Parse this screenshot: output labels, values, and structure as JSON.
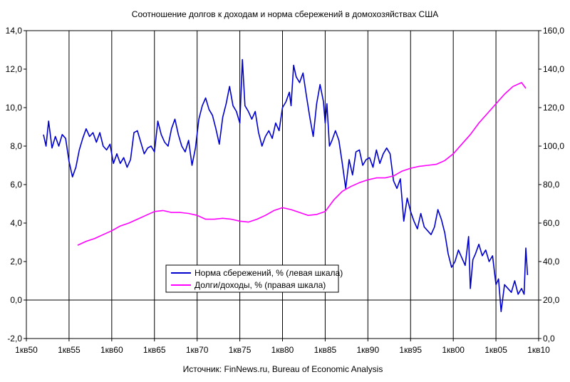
{
  "chart_data": {
    "type": "line",
    "title": "Соотношение долгов к доходам и норма сбережений в домохозяйствах США",
    "source": "Источник: FinNews.ru, Bureau of Economic Analysis",
    "x_axis": {
      "min": 1950,
      "max": 2010,
      "tick_values": [
        1950,
        1955,
        1960,
        1965,
        1970,
        1975,
        1980,
        1985,
        1990,
        1995,
        2000,
        2005,
        2010
      ],
      "tick_labels": [
        "1кв50",
        "1кв55",
        "1кв60",
        "1кв65",
        "1кв70",
        "1кв75",
        "1кв80",
        "1кв85",
        "1кв90",
        "1кв95",
        "1кв00",
        "1кв05",
        "1кв10"
      ]
    },
    "y_left": {
      "min": -2,
      "max": 14,
      "tick_values": [
        -2,
        0,
        2,
        4,
        6,
        8,
        10,
        12,
        14
      ],
      "tick_labels": [
        "-2,0",
        "0,0",
        "2,0",
        "4,0",
        "6,0",
        "8,0",
        "10,0",
        "12,0",
        "14,0"
      ]
    },
    "y_right": {
      "min": 0,
      "max": 160,
      "tick_values": [
        0,
        20,
        40,
        60,
        80,
        100,
        120,
        140,
        160
      ],
      "tick_labels": [
        "0,0",
        "20,0",
        "40,0",
        "60,0",
        "80,0",
        "100,0",
        "120,0",
        "140,0",
        "160,0"
      ]
    },
    "grid": "vertical",
    "legend_position": "center-left",
    "series": [
      {
        "name": "Норма сбережений, % (левая шкала)",
        "axis": "left",
        "color": "#0000cc",
        "points": [
          [
            1952.0,
            8.6
          ],
          [
            1952.3,
            8.0
          ],
          [
            1952.6,
            9.3
          ],
          [
            1953.0,
            7.9
          ],
          [
            1953.4,
            8.5
          ],
          [
            1953.8,
            8.0
          ],
          [
            1954.2,
            8.6
          ],
          [
            1954.6,
            8.4
          ],
          [
            1955.0,
            7.2
          ],
          [
            1955.4,
            6.4
          ],
          [
            1955.8,
            6.9
          ],
          [
            1956.2,
            7.8
          ],
          [
            1956.6,
            8.4
          ],
          [
            1957.0,
            8.9
          ],
          [
            1957.4,
            8.5
          ],
          [
            1957.8,
            8.7
          ],
          [
            1958.2,
            8.2
          ],
          [
            1958.6,
            8.7
          ],
          [
            1959.0,
            8.0
          ],
          [
            1959.4,
            7.8
          ],
          [
            1959.8,
            8.1
          ],
          [
            1960.2,
            7.1
          ],
          [
            1960.6,
            7.6
          ],
          [
            1961.0,
            7.1
          ],
          [
            1961.4,
            7.4
          ],
          [
            1961.8,
            6.9
          ],
          [
            1962.2,
            7.3
          ],
          [
            1962.6,
            8.7
          ],
          [
            1963.0,
            8.8
          ],
          [
            1963.4,
            8.2
          ],
          [
            1963.8,
            7.6
          ],
          [
            1964.2,
            7.9
          ],
          [
            1964.6,
            8.0
          ],
          [
            1965.0,
            7.7
          ],
          [
            1965.4,
            9.3
          ],
          [
            1965.8,
            8.6
          ],
          [
            1966.2,
            8.2
          ],
          [
            1966.6,
            8.0
          ],
          [
            1967.0,
            8.9
          ],
          [
            1967.4,
            9.4
          ],
          [
            1967.8,
            8.6
          ],
          [
            1968.2,
            8.0
          ],
          [
            1968.6,
            7.7
          ],
          [
            1969.0,
            8.3
          ],
          [
            1969.4,
            7.0
          ],
          [
            1969.8,
            7.9
          ],
          [
            1970.2,
            9.4
          ],
          [
            1970.6,
            10.1
          ],
          [
            1971.0,
            10.5
          ],
          [
            1971.4,
            9.9
          ],
          [
            1971.8,
            9.6
          ],
          [
            1972.2,
            8.9
          ],
          [
            1972.6,
            8.1
          ],
          [
            1973.0,
            9.5
          ],
          [
            1973.4,
            10.2
          ],
          [
            1973.8,
            11.1
          ],
          [
            1974.2,
            10.1
          ],
          [
            1974.6,
            9.8
          ],
          [
            1975.0,
            9.2
          ],
          [
            1975.3,
            12.5
          ],
          [
            1975.6,
            10.1
          ],
          [
            1976.0,
            9.8
          ],
          [
            1976.4,
            9.4
          ],
          [
            1976.8,
            9.8
          ],
          [
            1977.2,
            8.7
          ],
          [
            1977.6,
            8.0
          ],
          [
            1978.0,
            8.5
          ],
          [
            1978.4,
            8.8
          ],
          [
            1978.8,
            8.4
          ],
          [
            1979.2,
            9.2
          ],
          [
            1979.6,
            8.8
          ],
          [
            1980.0,
            10.0
          ],
          [
            1980.4,
            10.3
          ],
          [
            1980.8,
            10.8
          ],
          [
            1981.0,
            10.1
          ],
          [
            1981.3,
            12.2
          ],
          [
            1981.6,
            11.6
          ],
          [
            1982.0,
            11.3
          ],
          [
            1982.4,
            11.8
          ],
          [
            1982.8,
            10.6
          ],
          [
            1983.2,
            9.5
          ],
          [
            1983.6,
            8.5
          ],
          [
            1984.0,
            10.2
          ],
          [
            1984.4,
            11.2
          ],
          [
            1984.8,
            10.3
          ],
          [
            1985.0,
            9.2
          ],
          [
            1985.2,
            10.2
          ],
          [
            1985.5,
            8.0
          ],
          [
            1985.8,
            8.3
          ],
          [
            1986.2,
            8.8
          ],
          [
            1986.6,
            8.3
          ],
          [
            1987.0,
            7.1
          ],
          [
            1987.4,
            5.8
          ],
          [
            1987.8,
            7.3
          ],
          [
            1988.2,
            6.5
          ],
          [
            1988.6,
            7.7
          ],
          [
            1989.0,
            7.8
          ],
          [
            1989.4,
            7.0
          ],
          [
            1989.8,
            7.3
          ],
          [
            1990.2,
            7.4
          ],
          [
            1990.6,
            6.9
          ],
          [
            1991.0,
            7.8
          ],
          [
            1991.4,
            7.1
          ],
          [
            1991.8,
            7.6
          ],
          [
            1992.2,
            7.9
          ],
          [
            1992.6,
            7.6
          ],
          [
            1993.0,
            6.2
          ],
          [
            1993.4,
            5.8
          ],
          [
            1993.8,
            6.3
          ],
          [
            1994.2,
            4.1
          ],
          [
            1994.6,
            5.3
          ],
          [
            1995.0,
            4.6
          ],
          [
            1995.4,
            4.1
          ],
          [
            1995.8,
            3.7
          ],
          [
            1996.2,
            4.5
          ],
          [
            1996.6,
            3.8
          ],
          [
            1997.0,
            3.6
          ],
          [
            1997.4,
            3.4
          ],
          [
            1997.8,
            3.8
          ],
          [
            1998.2,
            4.7
          ],
          [
            1998.6,
            4.2
          ],
          [
            1999.0,
            3.5
          ],
          [
            1999.4,
            2.4
          ],
          [
            1999.8,
            1.7
          ],
          [
            2000.2,
            2.0
          ],
          [
            2000.6,
            2.6
          ],
          [
            2001.0,
            2.2
          ],
          [
            2001.4,
            1.8
          ],
          [
            2001.8,
            3.3
          ],
          [
            2002.0,
            0.6
          ],
          [
            2002.3,
            2.1
          ],
          [
            2002.6,
            2.4
          ],
          [
            2003.0,
            2.9
          ],
          [
            2003.4,
            2.3
          ],
          [
            2003.8,
            2.6
          ],
          [
            2004.2,
            2.0
          ],
          [
            2004.6,
            2.3
          ],
          [
            2005.0,
            0.8
          ],
          [
            2005.3,
            1.1
          ],
          [
            2005.6,
            -0.6
          ],
          [
            2006.0,
            0.8
          ],
          [
            2006.4,
            0.6
          ],
          [
            2006.8,
            0.4
          ],
          [
            2007.2,
            1.0
          ],
          [
            2007.6,
            0.3
          ],
          [
            2008.0,
            0.6
          ],
          [
            2008.3,
            0.3
          ],
          [
            2008.5,
            2.7
          ],
          [
            2008.7,
            1.3
          ]
        ]
      },
      {
        "name": "Долги/доходы, % (правая шкала)",
        "axis": "right",
        "color": "#ff00ff",
        "points": [
          [
            1956.0,
            48.5
          ],
          [
            1957.0,
            50.5
          ],
          [
            1958.0,
            52.0
          ],
          [
            1959.0,
            54.0
          ],
          [
            1960.0,
            56.0
          ],
          [
            1961.0,
            58.5
          ],
          [
            1962.0,
            60.0
          ],
          [
            1963.0,
            62.0
          ],
          [
            1964.0,
            64.0
          ],
          [
            1965.0,
            66.0
          ],
          [
            1966.0,
            66.5
          ],
          [
            1967.0,
            65.5
          ],
          [
            1968.0,
            65.5
          ],
          [
            1969.0,
            65.0
          ],
          [
            1970.0,
            64.0
          ],
          [
            1971.0,
            62.0
          ],
          [
            1972.0,
            62.0
          ],
          [
            1973.0,
            62.5
          ],
          [
            1974.0,
            62.0
          ],
          [
            1975.0,
            61.0
          ],
          [
            1976.0,
            60.5
          ],
          [
            1977.0,
            62.0
          ],
          [
            1978.0,
            64.0
          ],
          [
            1979.0,
            66.5
          ],
          [
            1980.0,
            68.0
          ],
          [
            1981.0,
            67.0
          ],
          [
            1982.0,
            65.5
          ],
          [
            1983.0,
            64.0
          ],
          [
            1984.0,
            64.5
          ],
          [
            1985.0,
            66.0
          ],
          [
            1986.0,
            72.0
          ],
          [
            1987.0,
            76.5
          ],
          [
            1988.0,
            79.0
          ],
          [
            1989.0,
            81.0
          ],
          [
            1990.0,
            82.5
          ],
          [
            1991.0,
            83.5
          ],
          [
            1992.0,
            83.5
          ],
          [
            1993.0,
            84.5
          ],
          [
            1994.0,
            87.0
          ],
          [
            1995.0,
            88.5
          ],
          [
            1996.0,
            89.5
          ],
          [
            1997.0,
            90.0
          ],
          [
            1998.0,
            90.5
          ],
          [
            1999.0,
            92.5
          ],
          [
            2000.0,
            96.0
          ],
          [
            2001.0,
            101.0
          ],
          [
            2002.0,
            106.0
          ],
          [
            2003.0,
            112.0
          ],
          [
            2004.0,
            117.0
          ],
          [
            2005.0,
            122.0
          ],
          [
            2006.0,
            127.0
          ],
          [
            2007.0,
            131.0
          ],
          [
            2008.0,
            133.0
          ],
          [
            2008.5,
            130.0
          ]
        ]
      }
    ]
  }
}
